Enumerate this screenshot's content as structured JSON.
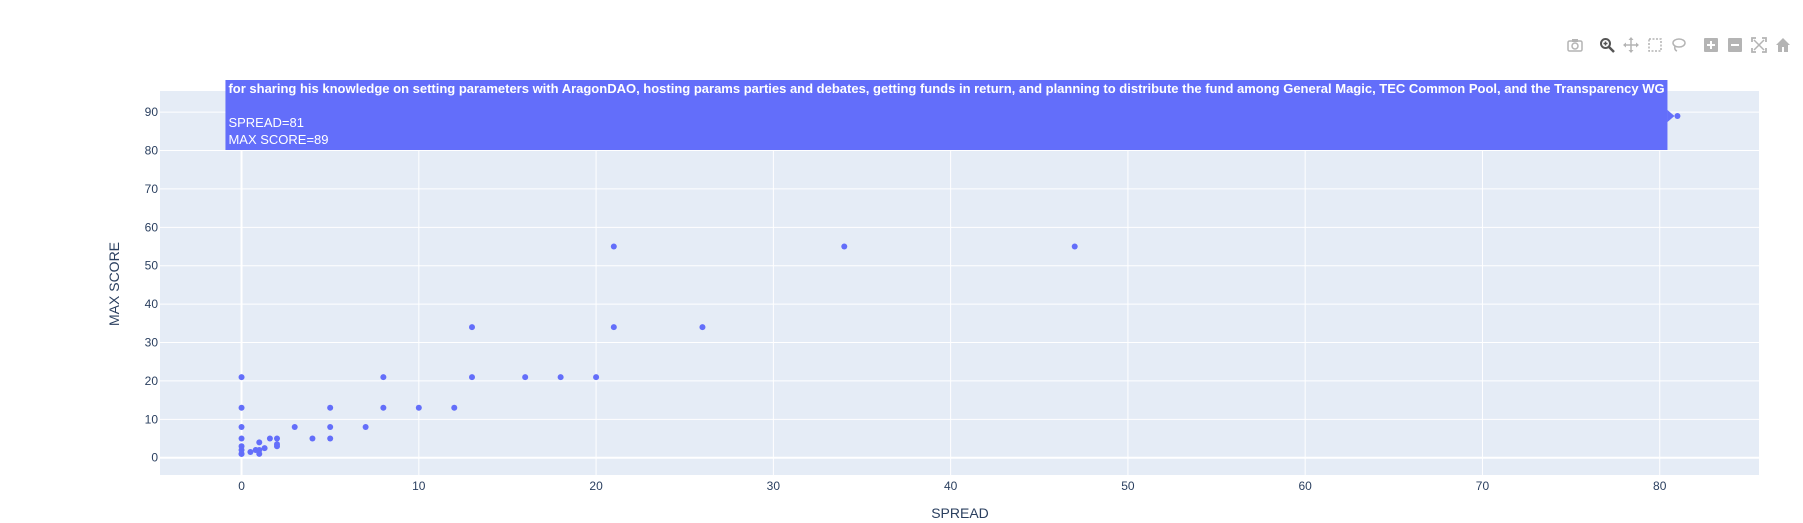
{
  "modebar": {
    "buttons": [
      {
        "group": 1,
        "icon": "camera-icon"
      },
      {
        "group": 2,
        "icon": "zoom-icon"
      },
      {
        "group": 2,
        "icon": "pan-icon"
      },
      {
        "group": 2,
        "icon": "box-select-icon"
      },
      {
        "group": 2,
        "icon": "lasso-select-icon"
      },
      {
        "group": 3,
        "icon": "zoom-in-icon"
      },
      {
        "group": 3,
        "icon": "zoom-out-icon"
      },
      {
        "group": 3,
        "icon": "autoscale-icon"
      },
      {
        "group": 3,
        "icon": "reset-axes-icon"
      }
    ],
    "active_icon": "zoom-icon",
    "icon_color": "#b4b4b4",
    "active_color": "#555555"
  },
  "hover": {
    "title": "for sharing his knowledge on setting parameters with AragonDAO, hosting params parties and debates, getting funds in return, and planning to distribute the fund among General Magic, TEC Common Pool, and the Transparency WG",
    "line1": "SPREAD=81",
    "line2": "MAX SCORE=89",
    "point": {
      "x": 81,
      "y": 89
    }
  },
  "chart_data": {
    "type": "scatter",
    "xlabel": "SPREAD",
    "ylabel": "MAX SCORE",
    "xlim": [
      -4.6,
      85.6
    ],
    "ylim": [
      -4.5,
      95.5
    ],
    "xticks": [
      0,
      10,
      20,
      30,
      40,
      50,
      60,
      70,
      80
    ],
    "yticks": [
      0,
      10,
      20,
      30,
      40,
      50,
      60,
      70,
      80,
      90
    ],
    "grid": true,
    "plot_bg": "#e5ecf6",
    "marker_color": "#636efa",
    "x": [
      0,
      0,
      0,
      0,
      0,
      0,
      0,
      0,
      0.5,
      0.8,
      1,
      1,
      1,
      1.3,
      1.6,
      2,
      2,
      2,
      3,
      4,
      5,
      5,
      5,
      7,
      8,
      8,
      10,
      12,
      13,
      13,
      16,
      18,
      20,
      21,
      21,
      26,
      34,
      47,
      81
    ],
    "y": [
      21,
      13,
      8,
      5,
      3,
      2,
      1,
      1,
      1.5,
      2,
      4,
      1,
      2,
      2.5,
      5,
      5,
      3,
      3.5,
      8,
      5,
      13,
      8,
      5,
      8,
      21,
      13,
      13,
      13,
      34,
      21,
      21,
      21,
      21,
      55,
      34,
      34,
      55,
      55,
      89
    ]
  }
}
